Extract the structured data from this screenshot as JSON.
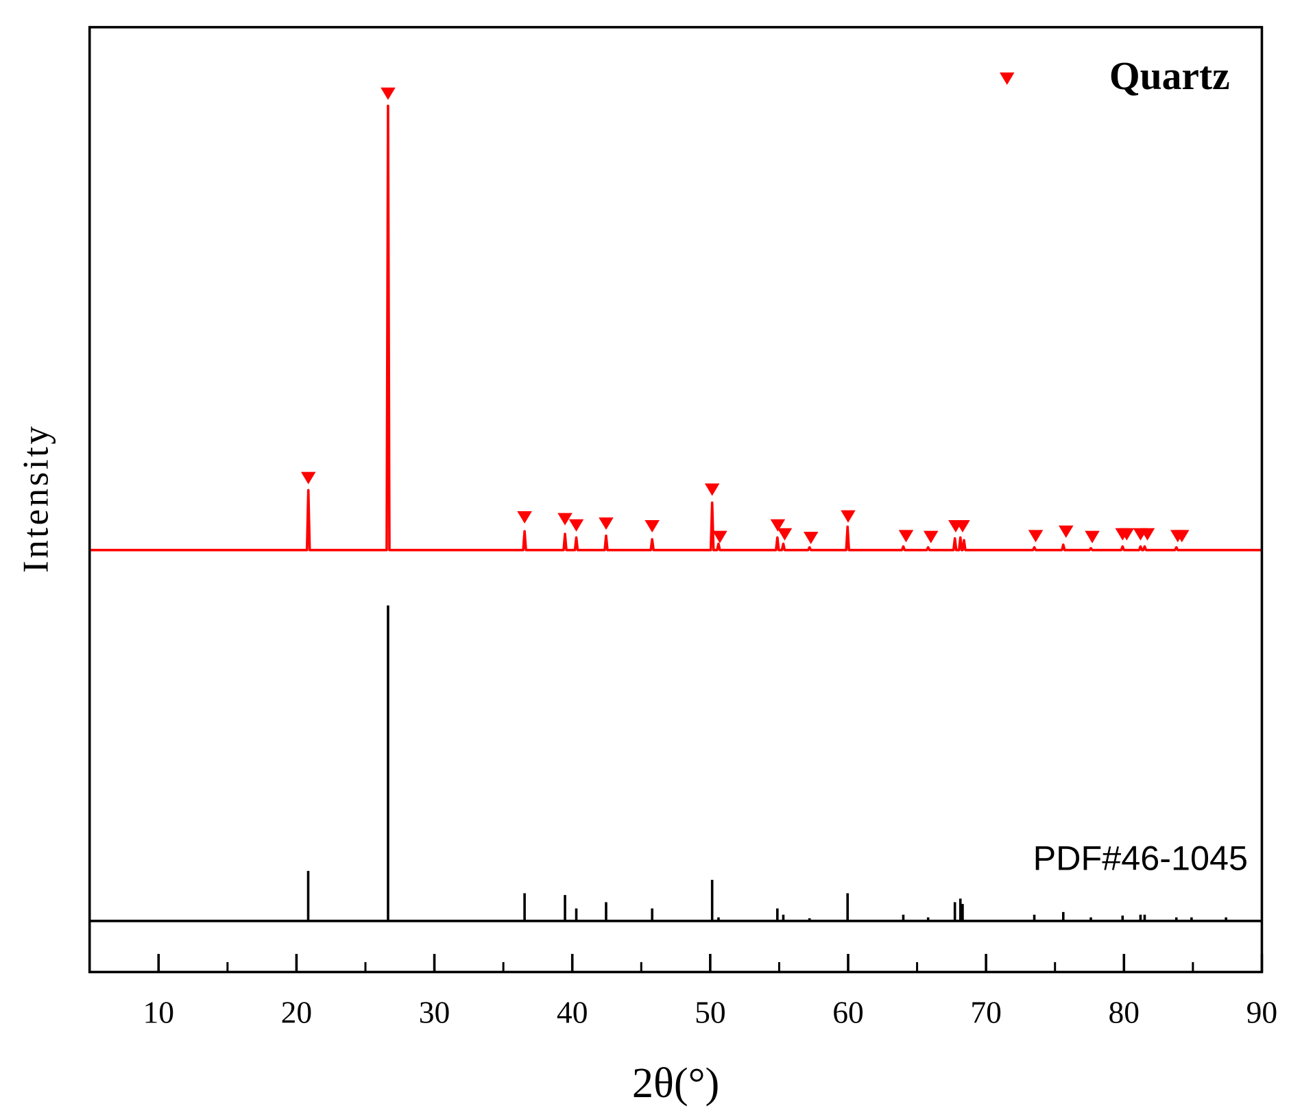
{
  "chart_data": {
    "type": "xrd",
    "xlabel": "2θ(°)",
    "ylabel": "Intensity",
    "xlim": [
      5,
      90
    ],
    "xticks": [
      10,
      20,
      30,
      40,
      50,
      60,
      70,
      80,
      90
    ],
    "xminor_ticks": [
      15,
      25,
      35,
      45,
      55,
      65,
      75,
      85
    ],
    "ylim": [
      0,
      100
    ],
    "legend": "upper right",
    "pattern": {
      "color": "#ff0000",
      "x": [
        5,
        20.76,
        20.86,
        20.96,
        26.54,
        26.64,
        26.74,
        36.44,
        36.54,
        36.64,
        39.37,
        39.47,
        39.57,
        40.19,
        40.29,
        40.39,
        42.35,
        42.45,
        42.55,
        45.69,
        45.79,
        45.89,
        50.04,
        50.14,
        50.24,
        50.5,
        50.6,
        50.7,
        54.77,
        54.87,
        54.97,
        55.2,
        55.3,
        55.4,
        57.1,
        57.2,
        57.3,
        59.86,
        59.96,
        60.06,
        63.9,
        64.0,
        64.1,
        65.7,
        65.8,
        65.9,
        67.64,
        67.74,
        67.84,
        68.04,
        68.14,
        68.24,
        68.3,
        68.4,
        68.5,
        73.4,
        73.5,
        73.6,
        75.5,
        75.6,
        75.7,
        77.5,
        77.6,
        77.7,
        79.8,
        79.9,
        80.0,
        81.1,
        81.2,
        81.3,
        81.4,
        81.5,
        81.6,
        83.7,
        83.8,
        83.9,
        90
      ],
      "values": [
        41.5,
        41.5,
        48.2,
        41.5,
        41.5,
        91.2,
        41.5,
        41.5,
        43.6,
        41.5,
        41.5,
        43.3,
        41.5,
        41.5,
        42.9,
        41.5,
        41.5,
        43.1,
        41.5,
        41.5,
        42.7,
        41.5,
        41.5,
        46.8,
        41.5,
        41.5,
        42.2,
        41.5,
        41.5,
        42.9,
        41.5,
        41.5,
        42.2,
        41.5,
        41.5,
        41.8,
        41.5,
        41.5,
        44.1,
        41.5,
        41.5,
        41.9,
        41.5,
        41.5,
        41.8,
        41.5,
        41.5,
        42.8,
        41.5,
        41.5,
        42.9,
        41.5,
        41.5,
        42.6,
        41.5,
        41.5,
        41.8,
        41.5,
        41.5,
        42.1,
        41.5,
        41.5,
        41.7,
        41.5,
        41.5,
        41.9,
        41.5,
        41.5,
        41.9,
        41.5,
        41.5,
        41.9,
        41.5,
        41.5,
        41.8,
        41.5,
        41.5
      ]
    },
    "markers": {
      "name": "Quartz",
      "color": "#ff0000",
      "x": [
        20.86,
        26.64,
        36.54,
        39.47,
        40.29,
        42.45,
        45.79,
        50.14,
        50.7,
        54.9,
        55.4,
        57.3,
        60.0,
        64.2,
        66.0,
        67.8,
        68.3,
        73.6,
        75.8,
        77.7,
        79.9,
        80.2,
        81.2,
        81.7,
        83.9,
        84.2
      ],
      "values": [
        49.6,
        92.6,
        45.2,
        45.0,
        44.3,
        44.5,
        44.2,
        48.3,
        43.0,
        44.3,
        43.3,
        42.9,
        45.3,
        43.1,
        43.0,
        44.2,
        44.2,
        43.1,
        43.6,
        43.0,
        43.3,
        43.3,
        43.3,
        43.3,
        43.1,
        43.1
      ]
    },
    "reference": {
      "name": "PDF#46-1045",
      "color": "#000000",
      "x": [
        20.85,
        26.64,
        36.54,
        39.47,
        40.29,
        42.45,
        45.79,
        50.14,
        50.6,
        54.87,
        55.3,
        57.2,
        59.96,
        64.0,
        65.8,
        67.74,
        68.14,
        68.3,
        73.5,
        75.6,
        77.6,
        79.9,
        81.2,
        81.5,
        83.8,
        84.9,
        87.4
      ],
      "values": [
        5.6,
        35.3,
        3.1,
        2.9,
        1.4,
        2.1,
        1.4,
        4.6,
        0.4,
        1.4,
        0.7,
        0.3,
        3.1,
        0.7,
        0.4,
        2.1,
        2.5,
        1.9,
        0.7,
        1.0,
        0.4,
        0.6,
        0.7,
        0.7,
        0.4,
        0.4,
        0.4
      ]
    }
  }
}
